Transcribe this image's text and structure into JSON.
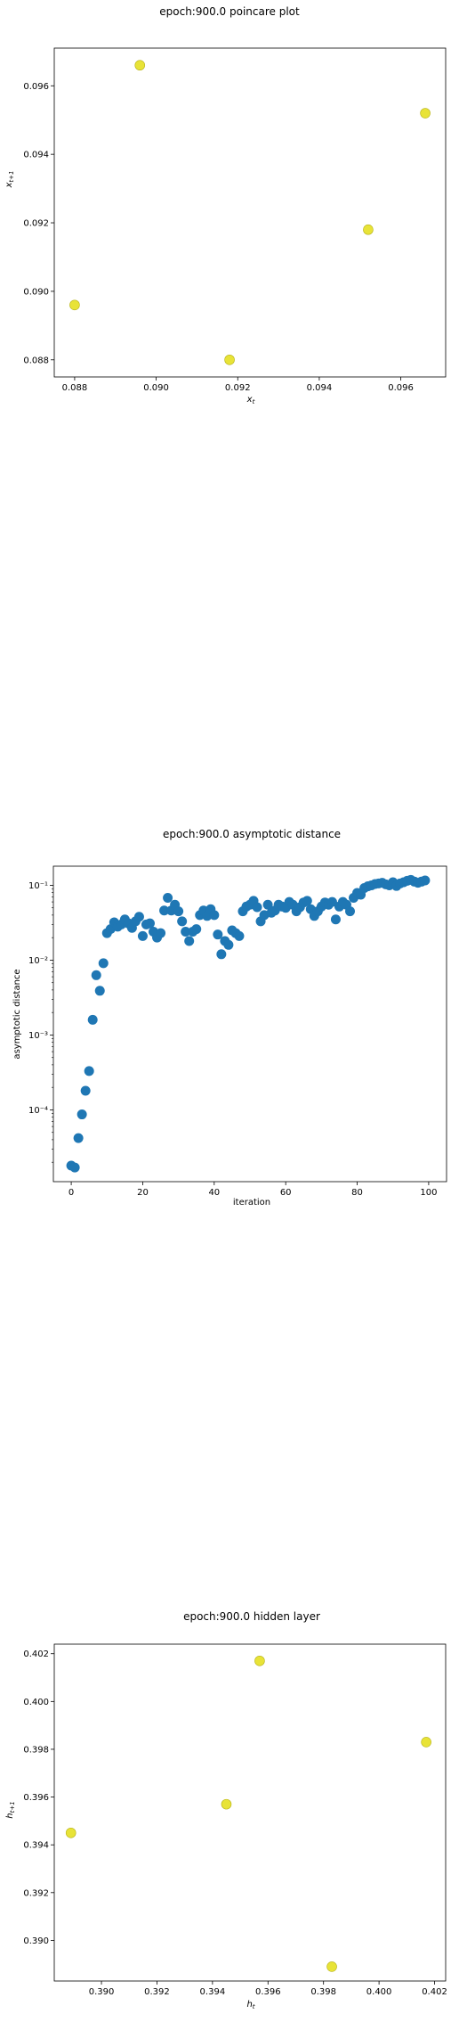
{
  "chart_data": [
    {
      "type": "scatter",
      "title": "epoch:900.0 poincare plot",
      "xlabel": "x_t",
      "ylabel": "x_{t+1}",
      "xlim": [
        0.0875,
        0.0971
      ],
      "ylim": [
        0.0875,
        0.0971
      ],
      "xticks": [
        0.088,
        0.09,
        0.092,
        0.094,
        0.096
      ],
      "yticks": [
        0.088,
        0.09,
        0.092,
        0.094,
        0.096
      ],
      "xtick_labels": [
        "0.088",
        "0.090",
        "0.092",
        "0.094",
        "0.096"
      ],
      "ytick_labels": [
        "0.088",
        "0.090",
        "0.092",
        "0.094",
        "0.096"
      ],
      "grid": false,
      "marker_color": "#e8e337",
      "points": [
        {
          "x": 0.088,
          "y": 0.0896
        },
        {
          "x": 0.0896,
          "y": 0.0966
        },
        {
          "x": 0.0918,
          "y": 0.088
        },
        {
          "x": 0.0952,
          "y": 0.0918
        },
        {
          "x": 0.0966,
          "y": 0.0952
        }
      ]
    },
    {
      "type": "scatter",
      "title": "epoch:900.0 asymptotic distance",
      "xlabel": "iteration",
      "ylabel": "asymptotic distance",
      "yscale": "log",
      "xlim": [
        -5,
        105
      ],
      "ylim": [
        1.1e-05,
        0.18
      ],
      "xticks": [
        0,
        20,
        40,
        60,
        80,
        100
      ],
      "xtick_labels": [
        "0",
        "20",
        "40",
        "60",
        "80",
        "100"
      ],
      "yticks": [
        0.0001,
        0.001,
        0.01,
        0.1
      ],
      "ytick_labels": [
        "10⁻⁴",
        "10⁻³",
        "10⁻²",
        "10⁻¹"
      ],
      "grid": false,
      "marker_color": "#1f77b4",
      "x": [
        0,
        1,
        2,
        3,
        4,
        5,
        6,
        7,
        8,
        9,
        10,
        11,
        12,
        13,
        14,
        15,
        16,
        17,
        18,
        19,
        20,
        21,
        22,
        23,
        24,
        25,
        26,
        27,
        28,
        29,
        30,
        31,
        32,
        33,
        34,
        35,
        36,
        37,
        38,
        39,
        40,
        41,
        42,
        43,
        44,
        45,
        46,
        47,
        48,
        49,
        50,
        51,
        52,
        53,
        54,
        55,
        56,
        57,
        58,
        59,
        60,
        61,
        62,
        63,
        64,
        65,
        66,
        67,
        68,
        69,
        70,
        71,
        72,
        73,
        74,
        75,
        76,
        77,
        78,
        79,
        80,
        81,
        82,
        83,
        84,
        85,
        86,
        87,
        88,
        89,
        90,
        91,
        92,
        93,
        94,
        95,
        96,
        97,
        98,
        99
      ],
      "y": [
        1.8e-05,
        1.7e-05,
        4.2e-05,
        8.7e-05,
        0.00018,
        0.00033,
        0.0016,
        0.0063,
        0.0039,
        0.0091,
        0.023,
        0.026,
        0.032,
        0.028,
        0.03,
        0.035,
        0.031,
        0.027,
        0.033,
        0.038,
        0.021,
        0.03,
        0.031,
        0.024,
        0.02,
        0.023,
        0.046,
        0.068,
        0.046,
        0.055,
        0.045,
        0.033,
        0.024,
        0.018,
        0.024,
        0.026,
        0.04,
        0.046,
        0.039,
        0.048,
        0.04,
        0.022,
        0.012,
        0.018,
        0.016,
        0.025,
        0.023,
        0.021,
        0.045,
        0.052,
        0.055,
        0.062,
        0.051,
        0.033,
        0.04,
        0.055,
        0.043,
        0.046,
        0.055,
        0.052,
        0.05,
        0.06,
        0.055,
        0.045,
        0.051,
        0.059,
        0.062,
        0.048,
        0.039,
        0.045,
        0.052,
        0.059,
        0.055,
        0.06,
        0.035,
        0.052,
        0.06,
        0.055,
        0.045,
        0.068,
        0.079,
        0.075,
        0.092,
        0.097,
        0.1,
        0.104,
        0.106,
        0.108,
        0.103,
        0.1,
        0.11,
        0.098,
        0.106,
        0.11,
        0.115,
        0.118,
        0.112,
        0.108,
        0.112,
        0.116
      ]
    },
    {
      "type": "scatter",
      "title": "epoch:900.0 hidden layer",
      "xlabel": "h_t",
      "ylabel": "h_{t+1}",
      "xlim": [
        0.3883,
        0.4024
      ],
      "ylim": [
        0.3883,
        0.4024
      ],
      "xticks": [
        0.39,
        0.392,
        0.394,
        0.396,
        0.398,
        0.4,
        0.402
      ],
      "yticks": [
        0.39,
        0.392,
        0.394,
        0.396,
        0.398,
        0.4,
        0.402
      ],
      "xtick_labels": [
        "0.390",
        "0.392",
        "0.394",
        "0.396",
        "0.398",
        "0.400",
        "0.402"
      ],
      "ytick_labels": [
        "0.390",
        "0.392",
        "0.394",
        "0.396",
        "0.398",
        "0.400",
        "0.402"
      ],
      "grid": false,
      "marker_color": "#e8e337",
      "points": [
        {
          "x": 0.3889,
          "y": 0.3945
        },
        {
          "x": 0.3945,
          "y": 0.3957
        },
        {
          "x": 0.3957,
          "y": 0.4017
        },
        {
          "x": 0.3983,
          "y": 0.3889
        },
        {
          "x": 0.4017,
          "y": 0.3983
        }
      ]
    }
  ]
}
